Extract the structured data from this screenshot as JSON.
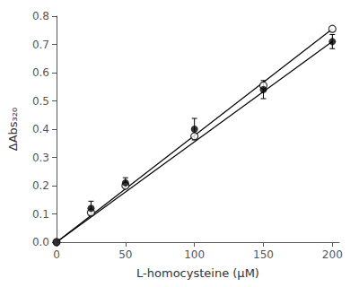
{
  "chart_data": {
    "type": "scatter",
    "xlabel": "L-homocysteine (μM)",
    "ylabel": "ΔAbs₃₂₀",
    "xlim": [
      0,
      205
    ],
    "ylim": [
      0,
      0.8
    ],
    "xticks": [
      0,
      50,
      100,
      150,
      200
    ],
    "yticks": [
      {
        "value": 0,
        "label": "0.0"
      },
      0.1,
      0.2,
      0.3,
      0.4,
      0.5,
      0.6,
      0.7,
      0.8
    ],
    "grid": false,
    "series": [
      {
        "type": "line",
        "x": [
          0,
          200
        ],
        "values": [
          0,
          0.755
        ],
        "color": "black",
        "line_style": "solid"
      },
      {
        "type": "line",
        "x": [
          0,
          200
        ],
        "values": [
          0,
          0.71
        ],
        "color": "black",
        "line_style": "solid"
      },
      {
        "type": "scatter",
        "x": [
          0,
          25,
          50,
          100,
          150,
          200
        ],
        "values": [
          0,
          0.12,
          0.21,
          0.4,
          0.54,
          0.71
        ],
        "yerr": [
          0,
          0.025,
          0.018,
          0.038,
          0.032,
          0.025
        ],
        "color": "black",
        "marker": "circle"
      },
      {
        "type": "scatter",
        "x": [
          0,
          25,
          50,
          100,
          150,
          200
        ],
        "values": [
          0,
          0.105,
          0.2,
          0.375,
          0.555,
          0.755
        ],
        "color": "white",
        "marker": "open_circle"
      }
    ]
  }
}
